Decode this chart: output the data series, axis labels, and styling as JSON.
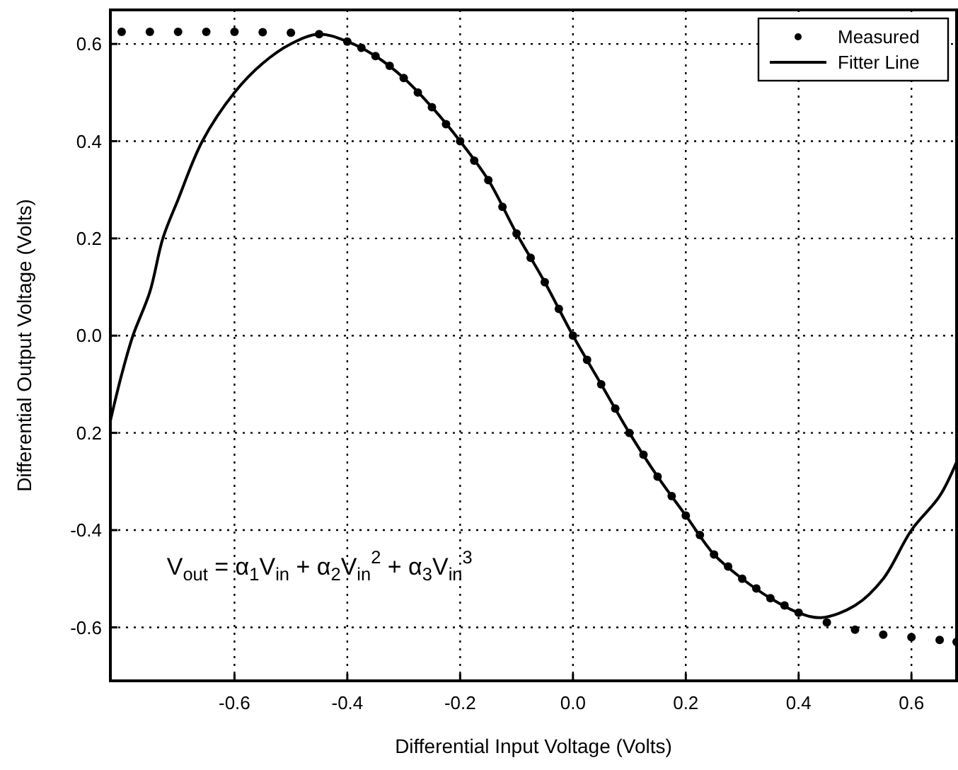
{
  "chart_data": {
    "type": "line",
    "xlabel": "Differential Input Voltage (Volts)",
    "ylabel": "Differential Output Voltage (Volts)",
    "xlim": [
      -0.82,
      0.68
    ],
    "ylim": [
      -0.71,
      0.67
    ],
    "xticks": [
      -0.6,
      -0.4,
      -0.2,
      {
        "value": 0,
        "label": "0.0"
      },
      0.2,
      0.4,
      0.6
    ],
    "yticks": [
      {
        "value": -0.6,
        "label": "-0.6"
      },
      {
        "value": -0.4,
        "label": "-0.4"
      },
      {
        "value": -0.2,
        "label": "0.2"
      },
      {
        "value": 0,
        "label": "0.0"
      },
      {
        "value": 0.2,
        "label": "0.2"
      },
      {
        "value": 0.4,
        "label": "0.4"
      },
      {
        "value": 0.6,
        "label": "0.6"
      }
    ],
    "grid": true,
    "legend": "top right",
    "annotations": [
      "V$_{out}$ = α$_{1}$V$_{in}$ + α$_{2}$V$_{in}$$^{2}$ + α$_{3}$V$_{in}$$^{3}$"
    ],
    "series": [
      {
        "name": "Measured",
        "type": "scatter",
        "marker": "circle",
        "color": "#000000",
        "x": [
          -0.8,
          -0.75,
          -0.7,
          -0.65,
          -0.6,
          -0.55,
          -0.5,
          -0.45,
          -0.4,
          -0.375,
          -0.35,
          -0.325,
          -0.3,
          -0.275,
          -0.25,
          -0.225,
          -0.2,
          -0.175,
          -0.15,
          -0.125,
          -0.1,
          -0.075,
          -0.05,
          -0.025,
          0,
          0.025,
          0.05,
          0.075,
          0.1,
          0.125,
          0.15,
          0.175,
          0.2,
          0.225,
          0.25,
          0.275,
          0.3,
          0.325,
          0.35,
          0.375,
          0.4,
          0.45,
          0.5,
          0.55,
          0.6,
          0.65,
          0.68
        ],
        "values": [
          0.625,
          0.625,
          0.625,
          0.625,
          0.625,
          0.624,
          0.623,
          0.62,
          0.605,
          0.592,
          0.575,
          0.555,
          0.53,
          0.5,
          0.47,
          0.435,
          0.4,
          0.36,
          0.32,
          0.265,
          0.21,
          0.16,
          0.11,
          0.055,
          0,
          -0.05,
          -0.1,
          -0.15,
          -0.2,
          -0.245,
          -0.29,
          -0.33,
          -0.37,
          -0.41,
          -0.45,
          -0.475,
          -0.5,
          -0.52,
          -0.54,
          -0.555,
          -0.57,
          -0.59,
          -0.605,
          -0.615,
          -0.62,
          -0.626,
          -0.63
        ]
      },
      {
        "name": "Fitter Line",
        "marker": "none",
        "line_style": "solid",
        "color": "#000000",
        "x": [
          -0.82,
          -0.8,
          -0.78,
          -0.75,
          -0.727,
          -0.7,
          -0.657,
          -0.6,
          -0.55,
          -0.5,
          -0.45,
          -0.4,
          -0.35,
          -0.3,
          -0.25,
          -0.2,
          -0.15,
          -0.1,
          -0.05,
          0,
          0.05,
          0.1,
          0.15,
          0.2,
          0.25,
          0.3,
          0.35,
          0.4,
          0.44,
          0.5,
          0.55,
          0.6,
          0.65,
          0.68
        ],
        "values": [
          -0.175,
          -0.08,
          0,
          0.09,
          0.2,
          0.28,
          0.4,
          0.5,
          0.56,
          0.6,
          0.62,
          0.605,
          0.575,
          0.53,
          0.47,
          0.4,
          0.32,
          0.21,
          0.11,
          0,
          -0.1,
          -0.2,
          -0.29,
          -0.37,
          -0.45,
          -0.5,
          -0.54,
          -0.57,
          -0.58,
          -0.555,
          -0.5,
          -0.4,
          -0.33,
          -0.26
        ]
      }
    ]
  }
}
